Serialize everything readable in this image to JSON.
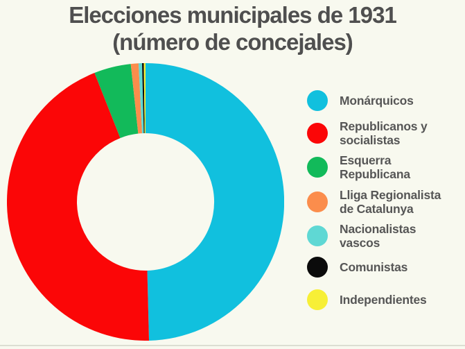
{
  "chart_data": {
    "type": "pie",
    "subtype": "donut",
    "title": "Elecciones municipales de 1931",
    "subtitle": "(número de concejales)",
    "legend_position": "right",
    "direction": "clockwise",
    "start_angle_deg": 0,
    "inner_radius_ratio": 0.5,
    "values_are_percent_estimated_from_arc_angles": true,
    "segments": [
      {
        "label": "Monárquicos",
        "label_lines": [
          "Monárquicos"
        ],
        "value_percent": 49.6,
        "color": "#11c0de"
      },
      {
        "label": "Republicanos y socialistas",
        "label_lines": [
          "Republicanos y",
          "socialistas"
        ],
        "value_percent": 44.4,
        "color": "#fb0607"
      },
      {
        "label": "Esquerra Republicana",
        "label_lines": [
          "Esquerra",
          "Republicana"
        ],
        "value_percent": 4.3,
        "color": "#12ba5a"
      },
      {
        "label": "Lliga Regionalista de Catalunya",
        "label_lines": [
          "Lliga Regionalista",
          "de Catalunya"
        ],
        "value_percent": 0.9,
        "color": "#fb8d4c"
      },
      {
        "label": "Nacionalistas vascos",
        "label_lines": [
          "Nacionalistas",
          "vascos"
        ],
        "value_percent": 0.4,
        "color": "#5fd8d4"
      },
      {
        "label": "Comunistas",
        "label_lines": [
          "Comunistas"
        ],
        "value_percent": 0.2,
        "color": "#0b0b0b"
      },
      {
        "label": "Independientes",
        "label_lines": [
          "Independientes"
        ],
        "value_percent": 0.2,
        "color": "#f7ef36"
      }
    ]
  },
  "theme": {
    "background": "#f8f9ef",
    "title_color": "#4f4f4f",
    "legend_text_color": "#565656",
    "separator_color": "#dcded2"
  }
}
